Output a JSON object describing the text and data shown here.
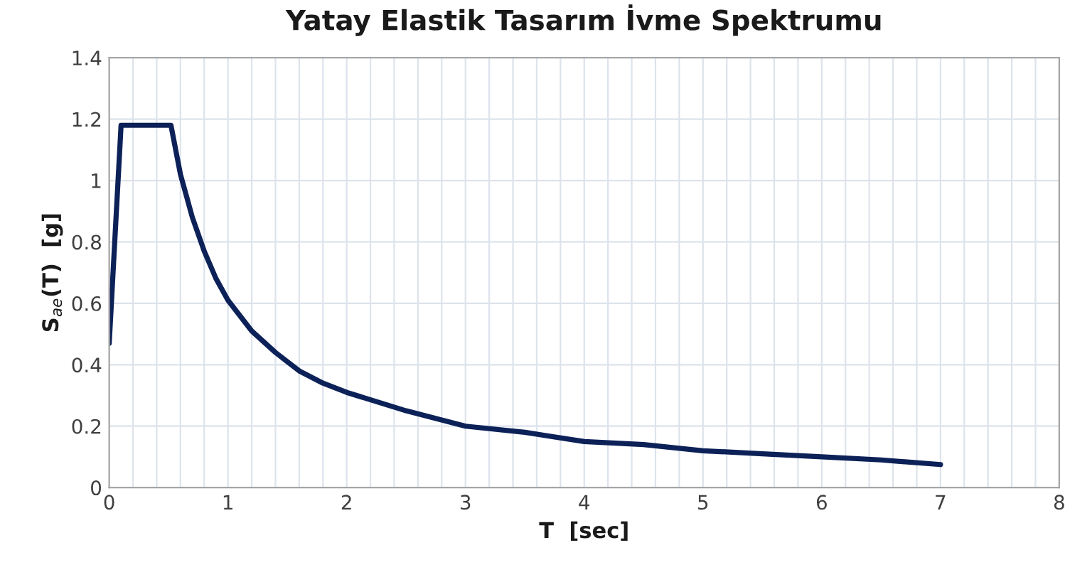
{
  "chart_data": {
    "type": "line",
    "title": "Yatay Elastik Tasarım İvme Spektrumu",
    "xlabel": "T  [sec]",
    "ylabel": "S$_{ae}$(T)  [g]",
    "x": [
      0,
      0.1,
      0.52,
      0.6,
      0.7,
      0.8,
      0.9,
      1,
      1.2,
      1.4,
      1.6,
      1.8,
      2,
      2.5,
      3,
      3.5,
      4,
      4.5,
      5,
      5.5,
      6,
      6.5,
      7
    ],
    "series": [
      {
        "color": "#0c2157",
        "values": [
          0.47,
          1.18,
          1.18,
          1.02,
          0.88,
          0.77,
          0.68,
          0.61,
          0.51,
          0.44,
          0.38,
          0.34,
          0.31,
          0.25,
          0.2,
          0.18,
          0.15,
          0.14,
          0.12,
          0.11,
          0.1,
          0.09,
          0.075
        ]
      }
    ],
    "xlim": [
      0,
      8
    ],
    "xticks": [
      0,
      {
        "value": 0.2,
        "label": null
      },
      {
        "value": 0.4,
        "label": null
      },
      {
        "value": 0.6,
        "label": null
      },
      {
        "value": 0.8,
        "label": null
      },
      1,
      {
        "value": 1.2,
        "label": null
      },
      {
        "value": 1.4,
        "label": null
      },
      {
        "value": 1.6,
        "label": null
      },
      {
        "value": 1.8,
        "label": null
      },
      2,
      {
        "value": 2.2,
        "label": null
      },
      {
        "value": 2.4,
        "label": null
      },
      {
        "value": 2.6,
        "label": null
      },
      {
        "value": 2.8,
        "label": null
      },
      3,
      {
        "value": 3.2,
        "label": null
      },
      {
        "value": 3.4,
        "label": null
      },
      {
        "value": 3.6,
        "label": null
      },
      {
        "value": 3.8,
        "label": null
      },
      4,
      {
        "value": 4.2,
        "label": null
      },
      {
        "value": 4.4,
        "label": null
      },
      {
        "value": 4.6,
        "label": null
      },
      {
        "value": 4.8,
        "label": null
      },
      5,
      {
        "value": 5.2,
        "label": null
      },
      {
        "value": 5.4,
        "label": null
      },
      {
        "value": 5.6,
        "label": null
      },
      {
        "value": 5.8,
        "label": null
      },
      6,
      {
        "value": 6.2,
        "label": null
      },
      {
        "value": 6.4,
        "label": null
      },
      {
        "value": 6.6,
        "label": null
      },
      {
        "value": 6.8,
        "label": null
      },
      7,
      {
        "value": 7.2,
        "label": null
      },
      {
        "value": 7.4,
        "label": null
      },
      {
        "value": 7.6,
        "label": null
      },
      {
        "value": 7.8,
        "label": null
      },
      8
    ],
    "ylim": [
      0,
      1.4
    ],
    "yticks": [
      0,
      0.2,
      0.4,
      0.6,
      0.8,
      1,
      1.2,
      1.4
    ],
    "grid": true,
    "marker": "none",
    "line_style": "solid",
    "legend": false
  }
}
